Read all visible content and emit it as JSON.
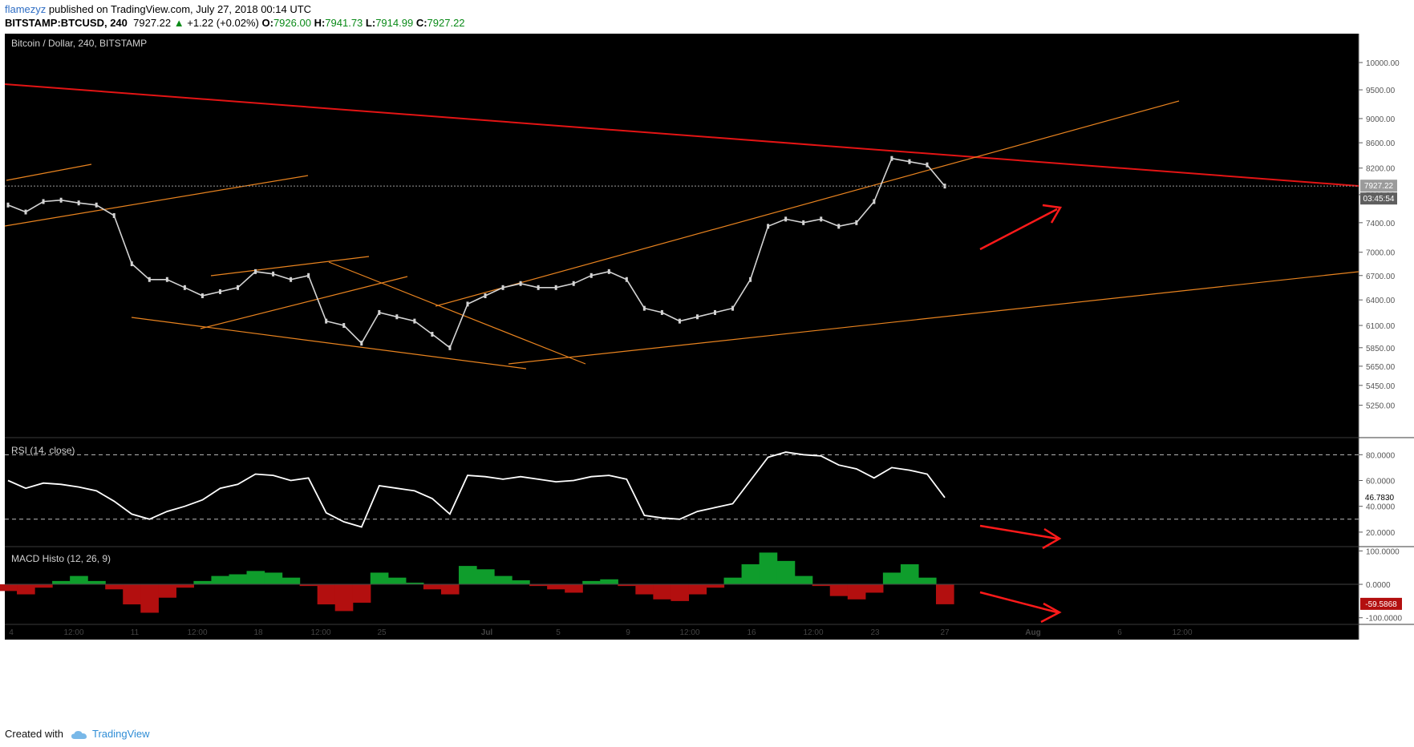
{
  "header": {
    "user": "flamezyz",
    "published": "published on TradingView.com, July 27, 2018 00:14 UTC",
    "symbol": "BITSTAMP:BTCUSD, 240",
    "last": "7927.22",
    "change_arrow": "▲",
    "change": "+1.22 (+0.02%)",
    "o_label": "O:",
    "o": "7926.00",
    "h_label": "H:",
    "h": "7941.73",
    "l_label": "L:",
    "l": "7914.99",
    "c_label": "C:",
    "c": "7927.22"
  },
  "footer": {
    "created_with": "Created with",
    "brand": "TradingView",
    "logo_icon": "tradingview-cloud-icon"
  },
  "colors": {
    "background": "#000000",
    "price_line": "#d4d4d4",
    "trendline_main": "#e31414",
    "trendline_minor": "#e8831f",
    "arrow": "#ff1a1a",
    "rsi_line": "#ffffff",
    "macd_up": "#0f9d2c",
    "macd_down": "#b30f0f"
  },
  "chart_data": [
    {
      "type": "line",
      "title": "Bitcoin / Dollar, 240, BITSTAMP",
      "y_ticks": [
        "10000.00",
        "9500.00",
        "9000.00",
        "8600.00",
        "8200.00",
        "7800.00",
        "7400.00",
        "7000.00",
        "6700.00",
        "6400.00",
        "6100.00",
        "5850.00",
        "5650.00",
        "5450.00",
        "5250.00"
      ],
      "y_scale": "log",
      "ylim": [
        5000,
        10400
      ],
      "x": [
        "Jun 4",
        "Jun 5",
        "Jun 6",
        "Jun 7",
        "Jun 8",
        "Jun 9",
        "Jun 10",
        "Jun 11",
        "Jun 12",
        "Jun 13",
        "Jun 14",
        "Jun 15",
        "Jun 16",
        "Jun 17",
        "Jun 18",
        "Jun 19",
        "Jun 20",
        "Jun 21",
        "Jun 22",
        "Jun 23",
        "Jun 24",
        "Jun 25",
        "Jun 26",
        "Jun 27",
        "Jun 28",
        "Jun 29",
        "Jun 30",
        "Jul 1",
        "Jul 2",
        "Jul 3",
        "Jul 4",
        "Jul 5",
        "Jul 6",
        "Jul 7",
        "Jul 8",
        "Jul 9",
        "Jul 10",
        "Jul 11",
        "Jul 12",
        "Jul 13",
        "Jul 14",
        "Jul 15",
        "Jul 16",
        "Jul 17",
        "Jul 18",
        "Jul 19",
        "Jul 20",
        "Jul 21",
        "Jul 22",
        "Jul 23",
        "Jul 24",
        "Jul 25",
        "Jul 26",
        "Jul 27"
      ],
      "values": [
        7650,
        7550,
        7700,
        7720,
        7680,
        7650,
        7500,
        6850,
        6650,
        6650,
        6550,
        6450,
        6500,
        6550,
        6750,
        6720,
        6650,
        6700,
        6150,
        6100,
        5900,
        6250,
        6200,
        6150,
        6000,
        5850,
        6350,
        6450,
        6550,
        6600,
        6550,
        6550,
        6600,
        6700,
        6750,
        6650,
        6300,
        6250,
        6150,
        6200,
        6250,
        6300,
        6650,
        7350,
        7450,
        7400,
        7450,
        7350,
        7400,
        7700,
        8350,
        8300,
        8250,
        7927.22
      ],
      "last_value_label": "7927.22",
      "countdown_label": "03:45:54",
      "x_ticks": [
        "4",
        "12:00",
        "11",
        "12:00",
        "18",
        "12:00",
        "25",
        "Jul",
        "5",
        "9",
        "12:00",
        "16",
        "12:00",
        "23",
        "27",
        "Aug",
        "6",
        "12:00"
      ]
    },
    {
      "type": "line",
      "title": "RSI (14, close)",
      "y_ticks": [
        "80.0000",
        "60.0000",
        "40.0000",
        "20.0000"
      ],
      "ylim": [
        10,
        92
      ],
      "levels": [
        80,
        30
      ],
      "values": [
        60,
        54,
        58,
        57,
        55,
        52,
        44,
        34,
        30,
        36,
        40,
        45,
        54,
        57,
        65,
        64,
        60,
        62,
        35,
        28,
        24,
        56,
        54,
        52,
        46,
        34,
        64,
        63,
        61,
        63,
        61,
        59,
        60,
        63,
        64,
        61,
        33,
        31,
        30,
        36,
        39,
        42,
        60,
        78,
        82,
        80,
        79,
        72,
        69,
        62,
        70,
        68,
        65,
        46.783
      ],
      "last_value_label": "46.7830"
    },
    {
      "type": "bar",
      "title": "MACD Histo (12, 26, 9)",
      "y_ticks": [
        "100.0000",
        "0.0000",
        "-100.0000"
      ],
      "ylim": [
        -115,
        108
      ],
      "values": [
        -20,
        -30,
        -10,
        10,
        25,
        10,
        -15,
        -60,
        -85,
        -40,
        -10,
        10,
        25,
        30,
        40,
        35,
        20,
        -5,
        -60,
        -80,
        -55,
        35,
        20,
        5,
        -15,
        -30,
        55,
        45,
        25,
        12,
        -5,
        -15,
        -25,
        10,
        15,
        -5,
        -30,
        -45,
        -50,
        -30,
        -10,
        20,
        60,
        95,
        70,
        25,
        -5,
        -35,
        -45,
        -25,
        35,
        60,
        20,
        -59.5868
      ],
      "last_value_label": "-59.5868"
    }
  ]
}
